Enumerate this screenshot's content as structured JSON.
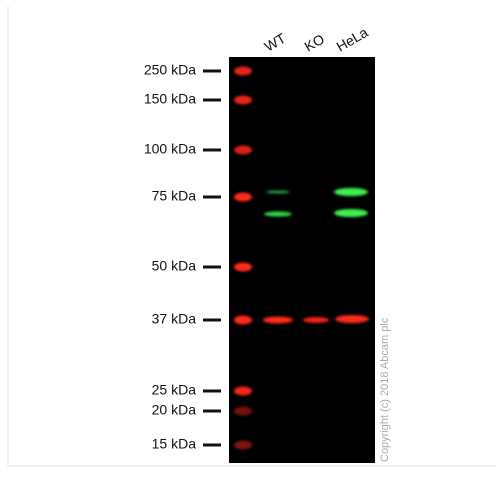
{
  "lanes": [
    "WT",
    "KO",
    "HeLa"
  ],
  "markers": [
    "250 kDa",
    "150 kDa",
    "100 kDa",
    "75 kDa",
    "50 kDa",
    "37 kDa",
    "25 kDa",
    "20 kDa",
    "15 kDa"
  ],
  "copyright": "Copyright (c) 2018 Abcam plc"
}
